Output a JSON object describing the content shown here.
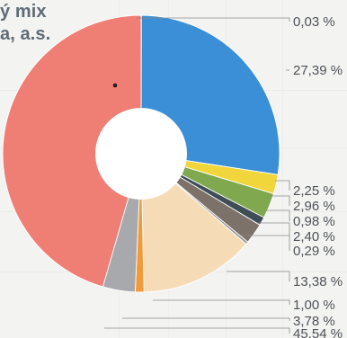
{
  "title": {
    "line1": "ý mix",
    "line2": "a, a.s."
  },
  "chart_data": {
    "type": "pie",
    "values": [
      0.03,
      27.39,
      2.25,
      2.96,
      0.98,
      2.4,
      0.29,
      13.38,
      1.0,
      3.78,
      45.54
    ],
    "labels": [
      "0,03 %",
      "27,39 %",
      "2,25 %",
      "2,96 %",
      "0,98 %",
      "2,40 %",
      "0,29 %",
      "13,38 %",
      "1,00 %",
      "3,78 %",
      "45,54 %"
    ],
    "colors": [
      "#d8d8d8",
      "#3b8fd6",
      "#f0d63a",
      "#7fa84f",
      "#3f4d57",
      "#7c7269",
      "#8f8f8f",
      "#f5dcb6",
      "#f29a3a",
      "#a7a9ad",
      "#ef7e74"
    ]
  }
}
